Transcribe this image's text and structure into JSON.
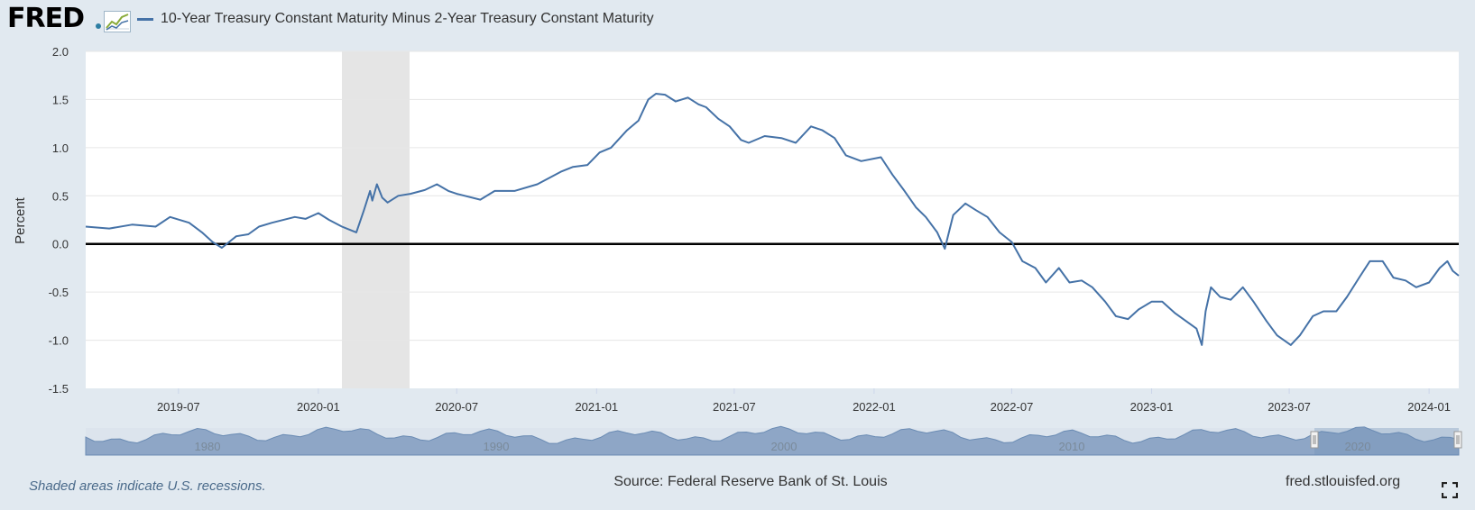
{
  "header": {
    "logo_text": "FRED",
    "legend_label": "10-Year Treasury Constant Maturity Minus 2-Year Treasury Constant Maturity"
  },
  "footer": {
    "recession_note": "Shaded areas indicate U.S. recessions.",
    "source": "Source: Federal Reserve Bank of St. Louis",
    "url": "fred.stlouisfed.org"
  },
  "icons": {
    "logo_chart": "line-chart-icon",
    "fullscreen": "fullscreen-icon"
  },
  "colors": {
    "series": "#4572a7",
    "background": "#e1e9f0",
    "recession": "#e5e5e5",
    "navigator": "#8ea6c6"
  },
  "navigator": {
    "labels": [
      "1980",
      "1990",
      "2000",
      "2010",
      "2020"
    ]
  },
  "chart_data": {
    "type": "line",
    "title": "",
    "xlabel": "",
    "ylabel": "Percent",
    "ylim": [
      -1.5,
      2.0
    ],
    "yticks": [
      -1.5,
      -1.0,
      -0.5,
      0.0,
      0.5,
      1.0,
      1.5,
      2.0
    ],
    "xlim": [
      "2019-03-01",
      "2024-02-09"
    ],
    "xticks": [
      "2019-07",
      "2020-01",
      "2020-07",
      "2021-01",
      "2021-07",
      "2022-01",
      "2022-07",
      "2023-01",
      "2023-07",
      "2024-01"
    ],
    "grid": true,
    "legend": "top-left",
    "recessions": [
      [
        "2020-02-01",
        "2020-04-30"
      ]
    ],
    "series": [
      {
        "name": "10-Year Treasury Constant Maturity Minus 2-Year Treasury Constant Maturity",
        "x": [
          "2019-03-01",
          "2019-04-01",
          "2019-05-01",
          "2019-06-01",
          "2019-06-20",
          "2019-07-15",
          "2019-08-01",
          "2019-08-15",
          "2019-08-27",
          "2019-09-15",
          "2019-10-01",
          "2019-10-15",
          "2019-11-01",
          "2019-12-01",
          "2019-12-15",
          "2020-01-01",
          "2020-01-15",
          "2020-02-01",
          "2020-02-20",
          "2020-03-01",
          "2020-03-09",
          "2020-03-12",
          "2020-03-18",
          "2020-03-25",
          "2020-04-01",
          "2020-04-15",
          "2020-05-01",
          "2020-05-20",
          "2020-06-05",
          "2020-06-20",
          "2020-07-01",
          "2020-08-01",
          "2020-08-20",
          "2020-09-15",
          "2020-10-15",
          "2020-11-15",
          "2020-12-01",
          "2020-12-20",
          "2021-01-05",
          "2021-01-20",
          "2021-02-10",
          "2021-02-25",
          "2021-03-10",
          "2021-03-20",
          "2021-04-01",
          "2021-04-15",
          "2021-05-01",
          "2021-05-15",
          "2021-05-25",
          "2021-06-10",
          "2021-06-25",
          "2021-07-10",
          "2021-07-20",
          "2021-08-10",
          "2021-09-01",
          "2021-09-20",
          "2021-10-10",
          "2021-10-25",
          "2021-11-10",
          "2021-11-25",
          "2021-12-15",
          "2022-01-10",
          "2022-01-25",
          "2022-02-10",
          "2022-02-25",
          "2022-03-10",
          "2022-03-25",
          "2022-04-04",
          "2022-04-15",
          "2022-05-01",
          "2022-05-15",
          "2022-05-30",
          "2022-06-15",
          "2022-07-01",
          "2022-07-15",
          "2022-08-01",
          "2022-08-15",
          "2022-09-01",
          "2022-09-15",
          "2022-10-01",
          "2022-10-15",
          "2022-11-01",
          "2022-11-15",
          "2022-12-01",
          "2022-12-15",
          "2023-01-01",
          "2023-01-15",
          "2023-02-01",
          "2023-02-15",
          "2023-03-01",
          "2023-03-08",
          "2023-03-13",
          "2023-03-20",
          "2023-04-01",
          "2023-04-15",
          "2023-05-01",
          "2023-05-15",
          "2023-06-01",
          "2023-06-15",
          "2023-07-03",
          "2023-07-15",
          "2023-08-01",
          "2023-08-15",
          "2023-09-01",
          "2023-09-15",
          "2023-10-01",
          "2023-10-15",
          "2023-11-01",
          "2023-11-15",
          "2023-12-01",
          "2023-12-15",
          "2024-01-01",
          "2024-01-15",
          "2024-01-25",
          "2024-02-01",
          "2024-02-09"
        ],
        "y": [
          0.18,
          0.16,
          0.2,
          0.18,
          0.28,
          0.22,
          0.12,
          0.02,
          -0.04,
          0.08,
          0.1,
          0.18,
          0.22,
          0.28,
          0.26,
          0.32,
          0.25,
          0.18,
          0.12,
          0.35,
          0.55,
          0.45,
          0.62,
          0.48,
          0.43,
          0.5,
          0.52,
          0.56,
          0.62,
          0.55,
          0.52,
          0.46,
          0.55,
          0.55,
          0.62,
          0.75,
          0.8,
          0.82,
          0.95,
          1.0,
          1.18,
          1.28,
          1.5,
          1.56,
          1.55,
          1.48,
          1.52,
          1.45,
          1.42,
          1.3,
          1.22,
          1.08,
          1.05,
          1.12,
          1.1,
          1.05,
          1.22,
          1.18,
          1.1,
          0.92,
          0.86,
          0.9,
          0.72,
          0.55,
          0.38,
          0.28,
          0.12,
          -0.05,
          0.3,
          0.42,
          0.35,
          0.28,
          0.12,
          0.02,
          -0.18,
          -0.25,
          -0.4,
          -0.25,
          -0.4,
          -0.38,
          -0.45,
          -0.6,
          -0.75,
          -0.78,
          -0.68,
          -0.6,
          -0.6,
          -0.72,
          -0.8,
          -0.88,
          -1.05,
          -0.7,
          -0.45,
          -0.55,
          -0.58,
          -0.45,
          -0.6,
          -0.8,
          -0.95,
          -1.05,
          -0.95,
          -0.75,
          -0.7,
          -0.7,
          -0.55,
          -0.35,
          -0.18,
          -0.18,
          -0.35,
          -0.38,
          -0.45,
          -0.4,
          -0.25,
          -0.18,
          -0.28,
          -0.33
        ]
      }
    ]
  }
}
